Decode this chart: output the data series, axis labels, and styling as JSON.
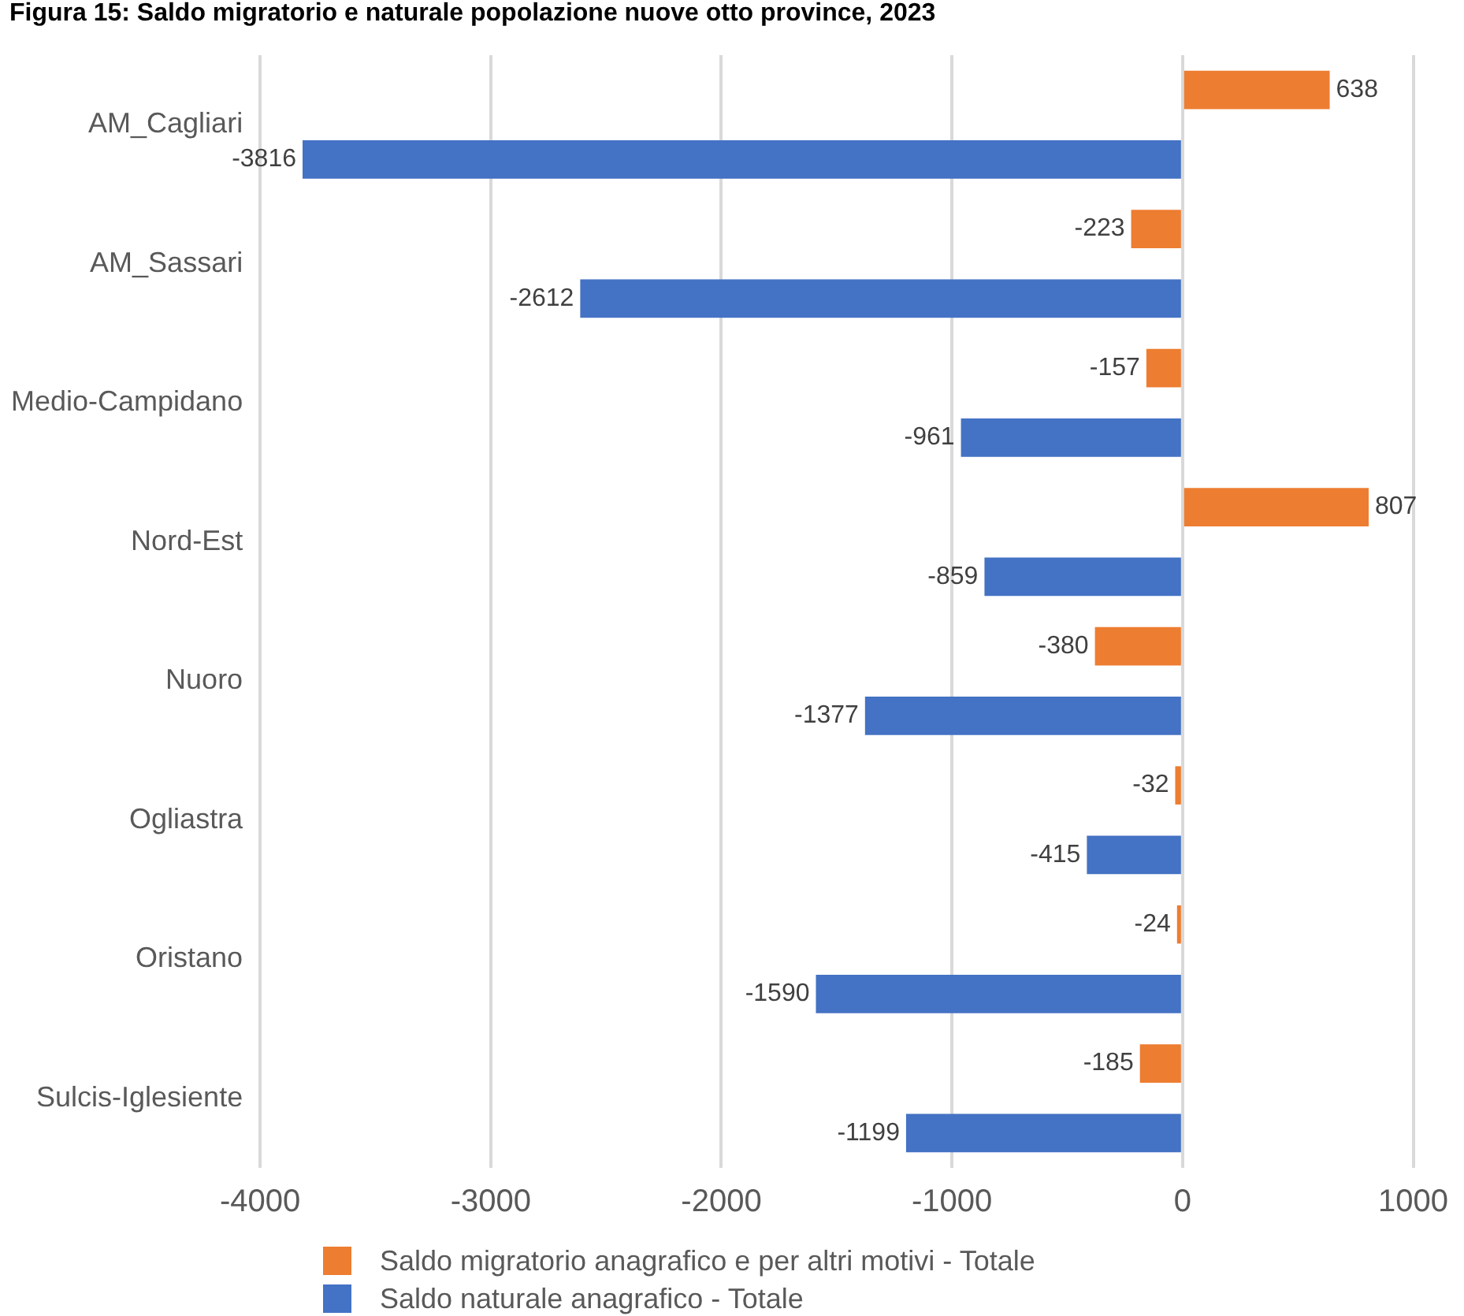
{
  "chart_data": {
    "type": "bar",
    "orientation": "horizontal",
    "title": "Figura 15: Saldo migratorio e naturale popolazione nuove otto province, 2023",
    "categories": [
      "AM_Cagliari",
      "AM_Sassari",
      "Medio-Campidano",
      "Nord-Est",
      "Nuoro",
      "Ogliastra",
      "Oristano",
      "Sulcis-Iglesiente"
    ],
    "series": [
      {
        "name": "Saldo migratorio anagrafico e per altri motivi - Totale",
        "color": "#ed7d31",
        "values": [
          638,
          -223,
          -157,
          807,
          -380,
          -32,
          -24,
          -185
        ]
      },
      {
        "name": "Saldo naturale anagrafico - Totale",
        "color": "#4472c4",
        "values": [
          -3816,
          -2612,
          -961,
          -859,
          -1377,
          -415,
          -1590,
          -1199
        ]
      }
    ],
    "xlim": [
      -4000,
      1000
    ],
    "xticks": [
      -4000,
      -3000,
      -2000,
      -1000,
      0,
      1000
    ],
    "grid": "x",
    "legend": "bottom",
    "data_labels": true
  }
}
